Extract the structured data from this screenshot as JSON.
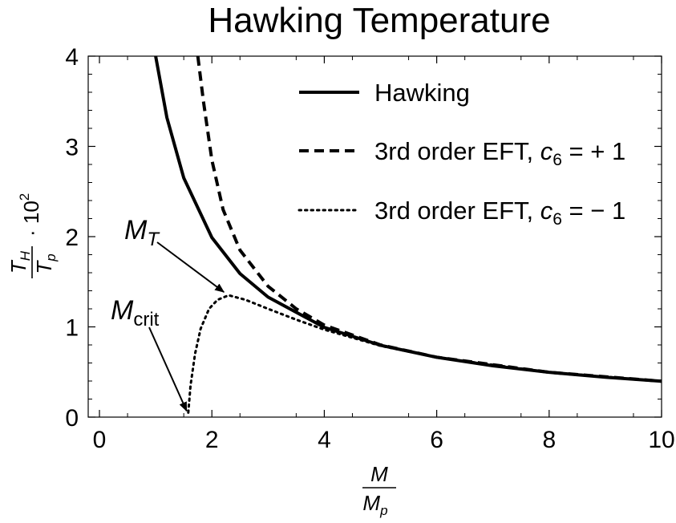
{
  "chart_data": {
    "type": "line",
    "title": "Hawking Temperature",
    "xlabel": {
      "numerator": "M",
      "denominator": "M",
      "denominator_sub": "p"
    },
    "ylabel": {
      "numerator": "T",
      "numerator_sub": "H",
      "denominator": "T",
      "denominator_sub": "p",
      "factor": "· 10",
      "factor_exp": "2"
    },
    "xlim": [
      -0.2,
      10
    ],
    "ylim": [
      0,
      4
    ],
    "x_ticks": [
      0,
      2,
      4,
      6,
      8,
      10
    ],
    "y_ticks": [
      0,
      1,
      2,
      3,
      4
    ],
    "grid": false,
    "legend_position": "top-right",
    "series": [
      {
        "name": "Hawking",
        "style": "solid",
        "points": [
          [
            1.0,
            4.0
          ],
          [
            1.2,
            3.32
          ],
          [
            1.5,
            2.65
          ],
          [
            2.0,
            1.99
          ],
          [
            2.5,
            1.59
          ],
          [
            3.0,
            1.33
          ],
          [
            4.0,
            0.995
          ],
          [
            5.0,
            0.796
          ],
          [
            6.0,
            0.663
          ],
          [
            7.0,
            0.569
          ],
          [
            8.0,
            0.497
          ],
          [
            9.0,
            0.442
          ],
          [
            10.0,
            0.398
          ]
        ]
      },
      {
        "name": "3rd order EFT, c6 = + 1",
        "style": "dashed",
        "points": [
          [
            1.75,
            4.0
          ],
          [
            1.85,
            3.5
          ],
          [
            2.0,
            2.85
          ],
          [
            2.2,
            2.3
          ],
          [
            2.5,
            1.85
          ],
          [
            3.0,
            1.45
          ],
          [
            3.5,
            1.2
          ],
          [
            4.0,
            1.02
          ],
          [
            5.0,
            0.8
          ],
          [
            6.0,
            0.664
          ],
          [
            8.0,
            0.497
          ],
          [
            10.0,
            0.398
          ]
        ]
      },
      {
        "name": "3rd order EFT, c6 = − 1",
        "style": "dotted",
        "points": [
          [
            1.58,
            0.05
          ],
          [
            1.62,
            0.35
          ],
          [
            1.7,
            0.7
          ],
          [
            1.8,
            0.98
          ],
          [
            1.95,
            1.2
          ],
          [
            2.1,
            1.3
          ],
          [
            2.3,
            1.35
          ],
          [
            2.6,
            1.3
          ],
          [
            3.0,
            1.2
          ],
          [
            3.5,
            1.08
          ],
          [
            4.0,
            0.97
          ],
          [
            5.0,
            0.79
          ],
          [
            6.0,
            0.662
          ],
          [
            8.0,
            0.497
          ],
          [
            10.0,
            0.398
          ]
        ]
      }
    ],
    "legend": [
      {
        "label": "Hawking",
        "style": "solid"
      },
      {
        "label_prefix": "3rd order EFT, ",
        "symbol": "c",
        "symbol_sub": "6",
        "label_suffix": " = + 1",
        "style": "dashed"
      },
      {
        "label_prefix": "3rd order EFT, ",
        "symbol": "c",
        "symbol_sub": "6",
        "label_suffix": " = − 1",
        "style": "dotted"
      }
    ],
    "annotations": [
      {
        "text": "M",
        "sub": "T",
        "target": [
          2.3,
          1.35
        ]
      },
      {
        "text": "M",
        "sub": "crit",
        "target": [
          1.58,
          0.05
        ]
      }
    ]
  }
}
